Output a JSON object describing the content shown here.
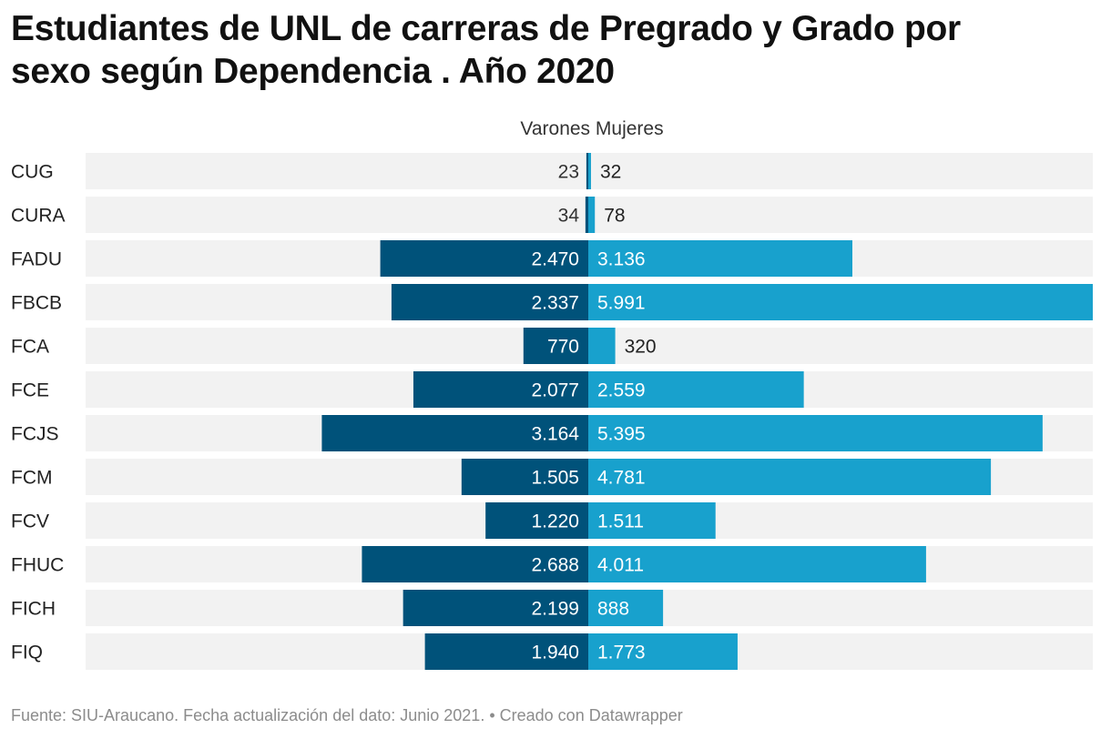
{
  "title_line1": "Estudiantes de UNL de carreras de Pregrado y Grado por",
  "title_line2": "sexo según Dependencia . Año 2020",
  "footer": {
    "source": "Fuente: SIU-Araucano. Fecha actualización del dato: Junio 2021.",
    "separator": " • ",
    "credit": "Creado con Datawrapper"
  },
  "colors": {
    "varones": "#00527a",
    "mujeres": "#18a1cd",
    "row_background": "#f2f2f2"
  },
  "chart_data": {
    "type": "bar",
    "orientation": "horizontal-diverging",
    "categories": [
      "CUG",
      "CURA",
      "FADU",
      "FBCB",
      "FCA",
      "FCE",
      "FCJS",
      "FCM",
      "FCV",
      "FHUC",
      "FICH",
      "FIQ"
    ],
    "series": [
      {
        "name": "Varones",
        "values": [
          23,
          34,
          2470,
          2337,
          770,
          2077,
          3164,
          1505,
          1220,
          2688,
          2199,
          1940
        ],
        "labels": [
          "23",
          "34",
          "2.470",
          "2.337",
          "770",
          "2.077",
          "3.164",
          "1.505",
          "1.220",
          "2.688",
          "2.199",
          "1.940"
        ]
      },
      {
        "name": "Mujeres",
        "values": [
          32,
          78,
          3136,
          5991,
          320,
          2559,
          5395,
          4781,
          1511,
          4011,
          888,
          1773
        ],
        "labels": [
          "32",
          "78",
          "3.136",
          "5.991",
          "320",
          "2.559",
          "5.395",
          "4.781",
          "1.511",
          "4.011",
          "888",
          "1.773"
        ]
      }
    ],
    "legend_position": "top-center"
  }
}
